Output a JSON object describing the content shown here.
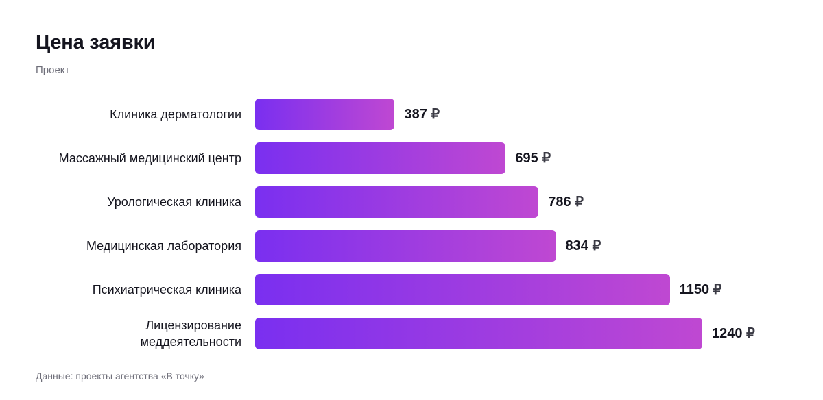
{
  "header": {
    "title": "Цена заявки",
    "subtitle": "Проект"
  },
  "footer": {
    "note": "Данные: проекты агентства «В точку»"
  },
  "colors": {
    "bar_start": "#7a2ff0",
    "bar_end": "#bf48d2",
    "text": "#15151f",
    "muted": "#6f6f7a"
  },
  "chart_data": {
    "type": "bar",
    "orientation": "horizontal",
    "title": "Цена заявки",
    "subtitle": "Проект",
    "unit": "₽",
    "categories": [
      "Клиника дерматологии",
      "Массажный медицинский центр",
      "Урологическая клиника",
      "Медицинская лаборатория",
      "Психиатрическая клиника",
      "Лицензирование\nмеддеятельности"
    ],
    "values": [
      387,
      695,
      786,
      834,
      1150,
      1240
    ],
    "value_labels": [
      "387",
      "695",
      "786",
      "834",
      "1150",
      "1240"
    ],
    "xlim": [
      0,
      1240
    ],
    "grid": false,
    "legend": "none"
  }
}
